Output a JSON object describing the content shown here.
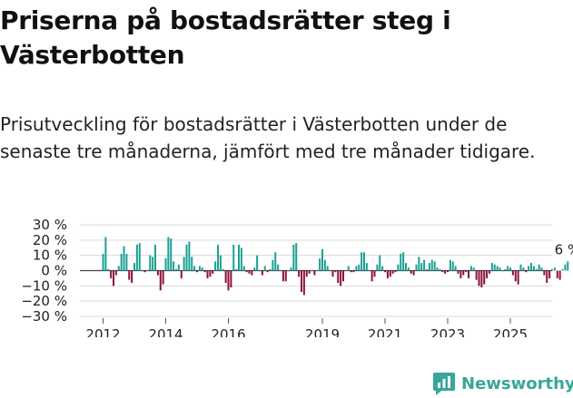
{
  "title": "Priserna på bostadsrätter steg i Västerbotten",
  "subtitle": "Prisutveckling för bostadsrätter i Västerbotten under de senaste tre månaderna, jämfört med tre månader tidigare.",
  "brand": {
    "name": "Newsworthy",
    "icon": "newsworthy-logo-icon"
  },
  "colors": {
    "positive": "#1aa095",
    "negative": "#8c1040",
    "grid": "#d9d9d9",
    "zero": "#444444",
    "brand": "#3aa59b"
  },
  "chart_data": {
    "type": "bar",
    "title": "",
    "xlabel": "",
    "ylabel": "",
    "ylim": [
      -30,
      30
    ],
    "y_ticks": [
      30,
      20,
      10,
      0,
      -10,
      -20,
      -30
    ],
    "y_tick_labels": [
      "30 %",
      "20 %",
      "10 %",
      "0 %",
      "−10 %",
      "−20 %",
      "−30 %"
    ],
    "x_tick_labels": [
      "2012",
      "2014",
      "2016",
      "2019",
      "2021",
      "2023",
      "2025"
    ],
    "x_tick_years": [
      2012,
      2014,
      2016,
      2019,
      2021,
      2023,
      2025
    ],
    "start": "2012-01",
    "frequency": "monthly",
    "annotation": "6 %",
    "values": [
      11,
      22,
      1,
      -5,
      -10,
      -3,
      3,
      11,
      16,
      11,
      -6,
      -8,
      5,
      17,
      18,
      0,
      -1,
      0,
      10,
      9,
      17,
      -3,
      -13,
      -9,
      8,
      22,
      21,
      6,
      1,
      4,
      -5,
      9,
      17,
      19,
      9,
      3,
      -1,
      3,
      2,
      -1,
      -5,
      -4,
      -2,
      6,
      17,
      10,
      1,
      -8,
      -13,
      -11,
      17,
      1,
      17,
      15,
      3,
      -1,
      -2,
      -3,
      2,
      10,
      0,
      -3,
      3,
      -1,
      1,
      7,
      12,
      4,
      0,
      -7,
      -7,
      0,
      2,
      17,
      18,
      -4,
      -14,
      -16,
      -4,
      -2,
      0,
      -3,
      0,
      8,
      14,
      7,
      3,
      0,
      -4,
      -1,
      -8,
      -10,
      -7,
      0,
      3,
      -1,
      -1,
      3,
      4,
      12,
      12,
      5,
      0,
      -7,
      -4,
      4,
      10,
      3,
      -1,
      -5,
      -4,
      -2,
      -1,
      4,
      11,
      12,
      5,
      2,
      -2,
      -3,
      4,
      9,
      5,
      7,
      1,
      5,
      7,
      6,
      2,
      1,
      -1,
      -2,
      -1,
      7,
      6,
      3,
      -2,
      -5,
      -3,
      -1,
      -5,
      3,
      2,
      -6,
      -10,
      -11,
      -9,
      -5,
      -2,
      5,
      4,
      3,
      2,
      0,
      1,
      3,
      2,
      -3,
      -7,
      -9,
      4,
      2,
      -1,
      3,
      5,
      3,
      1,
      4,
      2,
      -3,
      -8,
      -5,
      1,
      2,
      -5,
      -6,
      1,
      4,
      6
    ]
  }
}
